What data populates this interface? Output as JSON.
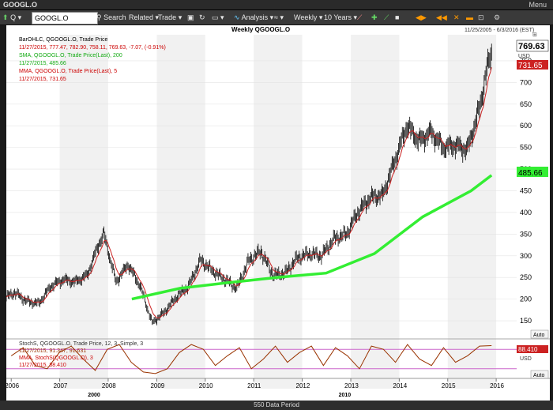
{
  "window": {
    "title": "GOOGL.O",
    "menu_label": "Menu"
  },
  "toolbar": {
    "symbol_prefix": "Q",
    "symbol_value": "GOOGL.O",
    "search_label": "Search",
    "related_label": "Related",
    "trade_label": "Trade",
    "analysis_label": "Analysis",
    "interval_label": "Weekly",
    "range_label": "10 Years"
  },
  "chart_header": {
    "title": "Weekly QGOOGL.O",
    "date_range": "11/25/2005 - 6/3/2016 (EST)",
    "usd": "USD",
    "auto_label": "Auto"
  },
  "legend": {
    "bar_line1": "BarOHLC, QGOOGL.O, Trade Price",
    "bar_line2": "11/27/2015, 777.47, 782.90, 758.11, 769.63, -7.07, (-0.91%)",
    "sma_line1": "SMA, QGOOGL.O, Trade Price(Last),  200",
    "sma_line2": "11/27/2015, 485.66",
    "mma_line1": "MMA, QGOOGL.O, Trade Price(Last),  5",
    "mma_line2": "11/27/2015, 731.65"
  },
  "price_tags": {
    "last": "769.63",
    "mma": "731.65",
    "sma": "485.66"
  },
  "stoch_legend": {
    "line1": "StochS, QGOOGL.O, Trade Price,  12, 3, Simple, 3",
    "line2": "11/27/2015, 91.347, 91.631",
    "line3": "MMA, StochS(QGOOGL.O), 3",
    "line4": "11/27/2015, 88.410"
  },
  "stoch_tag": "88.410",
  "stoch_usd": "USD",
  "stoch_auto": "Auto",
  "year_labels": [
    "2006",
    "2007",
    "2008",
    "2009",
    "2010",
    "2011",
    "2012",
    "2013",
    "2014",
    "2015",
    "2016"
  ],
  "decade_labels": [
    "2000",
    "2010"
  ],
  "status": {
    "period": "550 Data Period"
  },
  "colors": {
    "bars": "#000000",
    "sma": "#33ee33",
    "mma": "#cc2222",
    "stoch": "#993300",
    "band": "#cc66cc"
  },
  "chart_data": {
    "type": "line",
    "title": "Weekly QGOOGL.O",
    "x_axis": "date",
    "ylim": [
      110,
      810
    ],
    "yticks": [
      150,
      200,
      250,
      300,
      350,
      400,
      450,
      500,
      550,
      600,
      650,
      700,
      750
    ],
    "close": {
      "dates": [
        "2005-11-25",
        "2006-01-27",
        "2006-04-28",
        "2006-07-28",
        "2006-10-27",
        "2007-01-26",
        "2007-04-27",
        "2007-07-27",
        "2007-10-26",
        "2007-11-30",
        "2008-02-29",
        "2008-05-30",
        "2008-08-29",
        "2008-11-28",
        "2009-02-27",
        "2009-05-29",
        "2009-08-28",
        "2009-11-27",
        "2010-02-26",
        "2010-05-28",
        "2010-08-27",
        "2010-11-26",
        "2011-02-25",
        "2011-05-27",
        "2011-08-26",
        "2011-11-25",
        "2012-02-24",
        "2012-05-25",
        "2012-08-31",
        "2012-11-30",
        "2013-02-22",
        "2013-05-31",
        "2013-08-30",
        "2013-11-29",
        "2014-02-28",
        "2014-05-30",
        "2014-08-29",
        "2014-11-28",
        "2015-02-27",
        "2015-05-29",
        "2015-08-28",
        "2015-10-23",
        "2015-11-27"
      ],
      "values": [
        205,
        215,
        195,
        190,
        230,
        245,
        240,
        255,
        330,
        350,
        240,
        280,
        230,
        145,
        170,
        205,
        230,
        290,
        265,
        245,
        225,
        290,
        310,
        255,
        260,
        295,
        305,
        300,
        340,
        350,
        400,
        435,
        440,
        520,
        600,
        565,
        585,
        550,
        555,
        545,
        640,
        730,
        769.63
      ]
    },
    "sma200": {
      "dates": [
        "2008-06-27",
        "2009-06-26",
        "2010-06-25",
        "2011-06-24",
        "2012-06-29",
        "2013-06-28",
        "2014-06-27",
        "2015-06-26",
        "2015-11-27"
      ],
      "values": [
        200,
        225,
        238,
        250,
        260,
        305,
        390,
        450,
        485.66
      ]
    },
    "stochastic": {
      "ylim": [
        0,
        100
      ],
      "band": [
        20,
        80
      ],
      "values": [
        60,
        85,
        30,
        20,
        70,
        90,
        50,
        15,
        80,
        95,
        40,
        10,
        5,
        20,
        70,
        95,
        80,
        30,
        60,
        85,
        20,
        50,
        90,
        40,
        70,
        90,
        30,
        85,
        60,
        20,
        90,
        80,
        40,
        95,
        50,
        30,
        85,
        40,
        60,
        90,
        91.347
      ]
    }
  }
}
